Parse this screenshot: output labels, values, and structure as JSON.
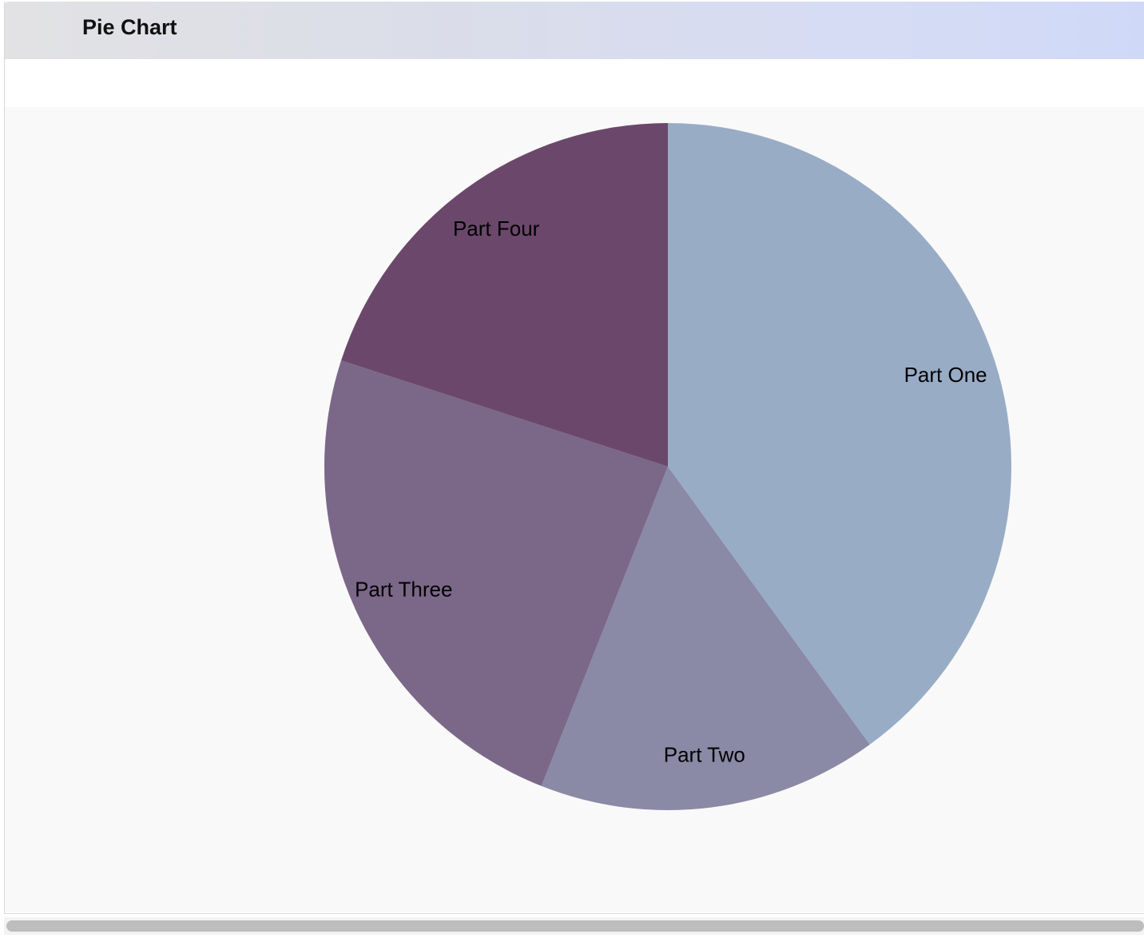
{
  "window": {
    "title": "Pie Chart"
  },
  "chart_data": {
    "type": "pie",
    "title": "",
    "categories": [
      "Part One",
      "Part Two",
      "Part Three",
      "Part Four"
    ],
    "values": [
      40,
      16,
      24,
      20
    ],
    "colors": [
      "#99acc6",
      "#8a89a6",
      "#7b6888",
      "#6b486b"
    ],
    "start_angle": "12 o'clock",
    "direction": "clockwise",
    "legend": "none",
    "labels": "inside slices"
  }
}
